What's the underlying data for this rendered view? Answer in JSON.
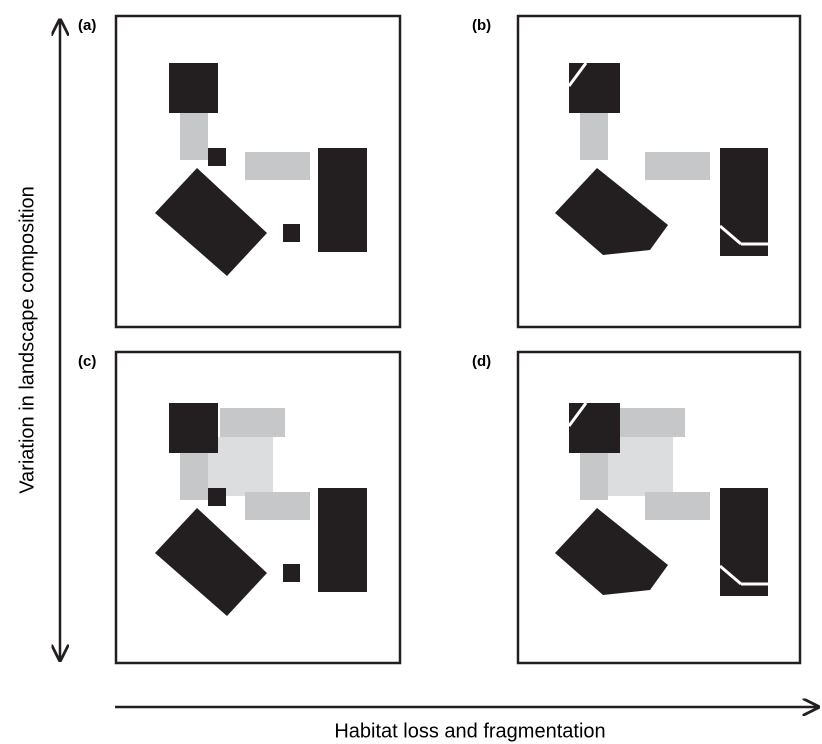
{
  "panels": [
    {
      "label": "(a)"
    },
    {
      "label": "(b)"
    },
    {
      "label": "(c)"
    },
    {
      "label": "(d)"
    }
  ],
  "axes": {
    "y_label": "Variation in landscape composition",
    "x_label": "Habitat loss and fragmentation"
  }
}
